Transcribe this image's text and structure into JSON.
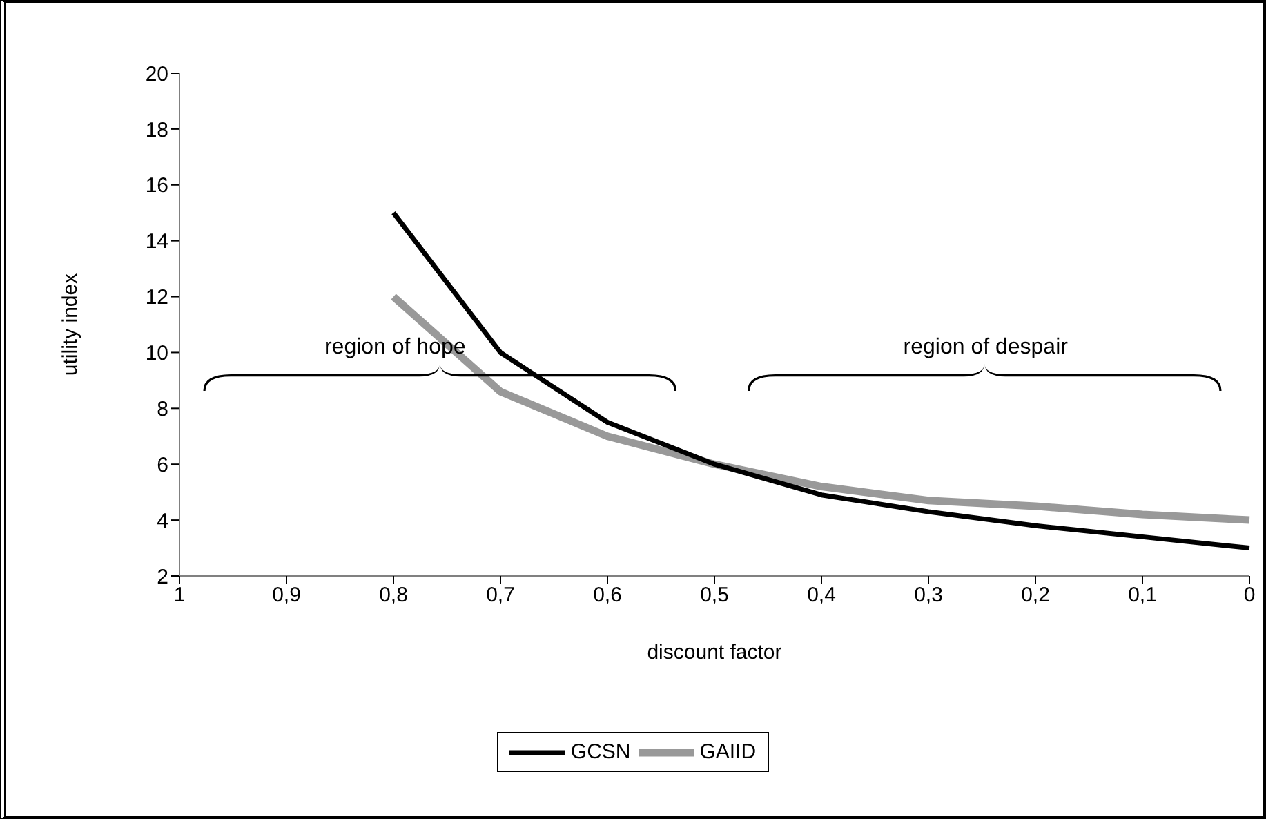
{
  "chart_data": {
    "type": "line",
    "xlabel": "discount factor",
    "ylabel": "utility index",
    "categories": [
      "1",
      "0,9",
      "0,8",
      "0,7",
      "0,6",
      "0,5",
      "0,4",
      "0,3",
      "0,2",
      "0,1",
      "0"
    ],
    "series": [
      {
        "name": "GCSN",
        "color": "#000000",
        "values": [
          null,
          null,
          15,
          10,
          7.5,
          6,
          4.9,
          4.3,
          3.8,
          3.4,
          3
        ]
      },
      {
        "name": "GAIID",
        "color": "#999999",
        "values": [
          null,
          null,
          12,
          8.6,
          7,
          6,
          5.2,
          4.7,
          4.5,
          4.2,
          4
        ]
      }
    ],
    "ylim": [
      2,
      20
    ],
    "yticks": [
      2,
      4,
      6,
      8,
      10,
      12,
      14,
      16,
      18,
      20
    ],
    "annotations": [
      "region of hope",
      "region of despair"
    ],
    "grid": false,
    "legend": "bottom",
    "marker": "none",
    "line_style": "solid"
  }
}
